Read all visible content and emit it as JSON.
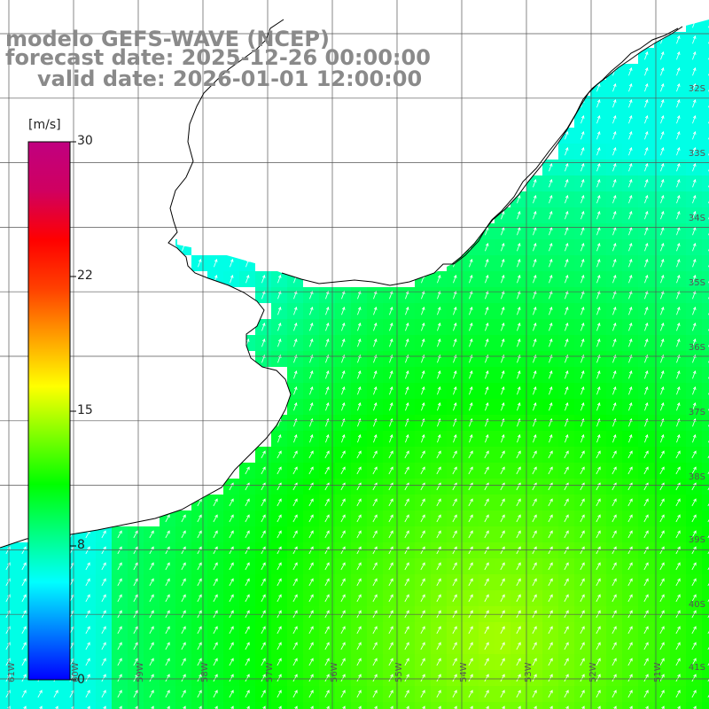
{
  "header": {
    "model": "modelo GEFS-WAVE (NCEP)",
    "forecast": "forecast date: 2025-12-26 00:00:00",
    "valid": "valid date: 2026-01-01 12:00:00"
  },
  "colorbar": {
    "unit": "[m/s]",
    "min": 0,
    "max": 30,
    "ticks": [
      "30",
      "22",
      "15",
      "8",
      "0"
    ],
    "colors": [
      "#0000ff",
      "#0080ff",
      "#00ffff",
      "#00ff80",
      "#00ff00",
      "#80ff00",
      "#ffff00",
      "#ffa000",
      "#ff4000",
      "#ff0000",
      "#d00060",
      "#c00080"
    ]
  },
  "latitude_labels": [
    "32S",
    "33S",
    "34S",
    "35S",
    "36S",
    "37S",
    "38S",
    "39S",
    "40S",
    "41S"
  ],
  "longitude_labels": [
    "61W",
    "60W",
    "59W",
    "58W",
    "57W",
    "56W",
    "55W",
    "54W",
    "53W",
    "52W",
    "51W"
  ],
  "colors": {
    "land": "#ffffff",
    "coast": "#000000",
    "grid": "#555555",
    "arrow": "#ffffff",
    "text": "#8a8a8a"
  }
}
